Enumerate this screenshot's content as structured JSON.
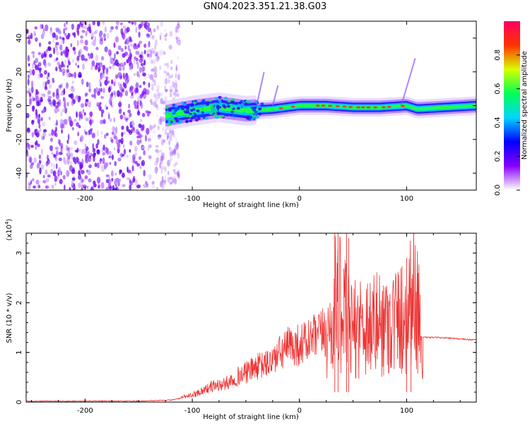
{
  "title": "GN04.2023.351.21.38.G03",
  "chart_data": [
    {
      "type": "heatmap",
      "xlabel": "Height of straight line (km)",
      "ylabel": "Frequency (Hz)",
      "xlim": [
        -255,
        165
      ],
      "ylim": [
        -50,
        50
      ],
      "xticks": [
        -200,
        -100,
        0,
        100
      ],
      "yticks": [
        -40,
        -20,
        0,
        20,
        40
      ],
      "ridge_points_km_hz": [
        [
          -125,
          -6
        ],
        [
          -100,
          -3
        ],
        [
          -75,
          -1
        ],
        [
          -50,
          -3
        ],
        [
          -25,
          -2
        ],
        [
          0,
          0
        ],
        [
          25,
          0
        ],
        [
          50,
          -1
        ],
        [
          75,
          -1
        ],
        [
          100,
          0
        ],
        [
          110,
          -2
        ],
        [
          165,
          0
        ]
      ],
      "scatter_band_km": [
        -255,
        -118
      ],
      "colorbar": {
        "label": "Normalized spectral amplitude",
        "range": [
          0,
          1
        ],
        "ticks": [
          "0.0",
          "0.2",
          "0.4",
          "0.6",
          "0.8"
        ],
        "colors": [
          "#ffffff",
          "#8800ff",
          "#0000ff",
          "#00d5ff",
          "#00ff55",
          "#d8ff00",
          "#ff3300",
          "#ff0060"
        ]
      }
    },
    {
      "type": "line",
      "xlabel": "Height of straight line (km)",
      "ylabel": "SNR (10 * v/v)",
      "y_multiplier_label": "(x10",
      "y_multiplier_exp": "4",
      "y_multiplier_close": ")",
      "xlim": [
        -255,
        165
      ],
      "ylim": [
        0,
        3.4
      ],
      "xticks": [
        -200,
        -100,
        0,
        100
      ],
      "yticks": [
        0,
        1,
        2,
        3
      ],
      "color": "#ee3333",
      "x": [
        -255,
        -200,
        -150,
        -120,
        -110,
        -100,
        -90,
        -80,
        -70,
        -60,
        -50,
        -40,
        -30,
        -20,
        -10,
        0,
        10,
        20,
        25,
        30,
        35,
        40,
        45,
        50,
        55,
        60,
        70,
        80,
        90,
        100,
        105,
        110,
        115,
        130,
        150,
        165
      ],
      "y": [
        0.02,
        0.02,
        0.02,
        0.04,
        0.08,
        0.12,
        0.2,
        0.28,
        0.3,
        0.42,
        0.5,
        0.6,
        0.65,
        0.8,
        0.95,
        0.98,
        1.05,
        1.15,
        1.2,
        1.5,
        2.2,
        1.8,
        1.6,
        1.4,
        1.55,
        1.6,
        1.55,
        1.6,
        1.65,
        1.75,
        2.3,
        1.9,
        1.3,
        1.3,
        1.27,
        1.25
      ]
    }
  ]
}
